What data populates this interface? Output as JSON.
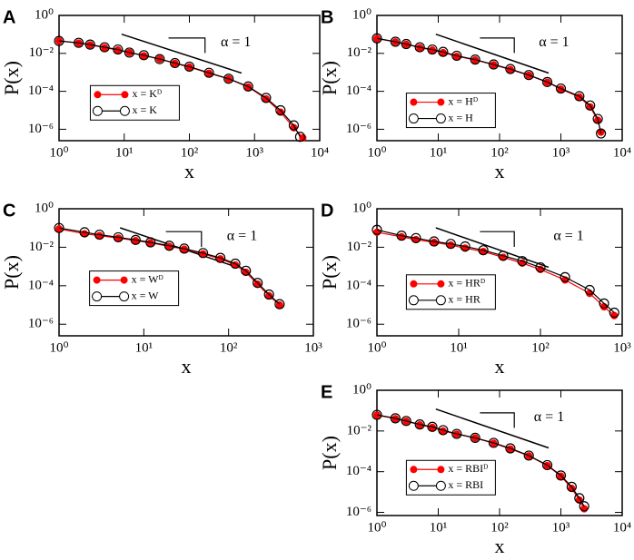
{
  "chart_data": [
    {
      "type": "line",
      "label": "A",
      "xlabel": "x",
      "ylabel": "P(x)",
      "annotation": "α = 1",
      "xlog": true,
      "ylog": true,
      "xlim": [
        1,
        10000
      ],
      "ylim": [
        2.5e-07,
        1
      ],
      "xticks": [
        {
          "value": 1,
          "label": "10⁰"
        },
        {
          "value": 10,
          "label": "10¹"
        },
        {
          "value": 100,
          "label": "10²"
        },
        {
          "value": 1000,
          "label": "10³"
        },
        {
          "value": 10000,
          "label": "10⁴"
        }
      ],
      "yticks": [
        {
          "value": 1,
          "label": "10⁰"
        },
        {
          "value": 0.01,
          "label": "10⁻²"
        },
        {
          "value": 0.0001,
          "label": "10⁻⁴"
        },
        {
          "value": 1e-06,
          "label": "10⁻⁶"
        }
      ],
      "series": [
        {
          "name": "x = Kᴰ",
          "color": "#ff0000",
          "marker": "filled",
          "x": [
            1,
            2,
            3,
            5,
            8,
            12,
            20,
            35,
            60,
            100,
            200,
            400,
            800,
            1500,
            2500,
            4000,
            5500
          ],
          "values": [
            0.045,
            0.035,
            0.028,
            0.02,
            0.015,
            0.011,
            0.0075,
            0.005,
            0.003,
            0.0019,
            0.0009,
            0.00045,
            0.00017,
            4e-05,
            8e-06,
            1.2e-06,
            3.5e-07
          ]
        },
        {
          "name": "x = K",
          "color": "#000000",
          "marker": "open",
          "x": [
            1,
            2,
            3,
            5,
            8,
            12,
            20,
            35,
            60,
            100,
            200,
            400,
            800,
            1500,
            2500,
            4000,
            5000
          ],
          "values": [
            0.045,
            0.036,
            0.029,
            0.021,
            0.016,
            0.011,
            0.008,
            0.005,
            0.0031,
            0.002,
            0.00095,
            0.00046,
            0.00018,
            4.5e-05,
            1e-05,
            1.6e-06,
            4e-07
          ]
        }
      ]
    },
    {
      "type": "line",
      "label": "B",
      "xlabel": "x",
      "ylabel": "P(x)",
      "annotation": "α = 1",
      "xlog": true,
      "ylog": true,
      "xlim": [
        1,
        10000
      ],
      "ylim": [
        2.5e-07,
        1
      ],
      "xticks": [
        {
          "value": 1,
          "label": "10⁰"
        },
        {
          "value": 10,
          "label": "10¹"
        },
        {
          "value": 100,
          "label": "10²"
        },
        {
          "value": 1000,
          "label": "10³"
        },
        {
          "value": 10000,
          "label": "10⁴"
        }
      ],
      "yticks": [
        {
          "value": 1,
          "label": "10⁰"
        },
        {
          "value": 0.01,
          "label": "10⁻²"
        },
        {
          "value": 0.0001,
          "label": "10⁻⁴"
        },
        {
          "value": 1e-06,
          "label": "10⁻⁶"
        }
      ],
      "series": [
        {
          "name": "x = Hᴰ",
          "color": "#ff0000",
          "marker": "filled",
          "x": [
            1,
            2,
            3,
            5,
            8,
            12,
            20,
            40,
            80,
            150,
            300,
            600,
            1000,
            2000,
            3000,
            4000,
            4500
          ],
          "values": [
            0.06,
            0.04,
            0.03,
            0.02,
            0.015,
            0.011,
            0.007,
            0.0045,
            0.0025,
            0.0014,
            0.0007,
            0.0003,
            0.00013,
            5e-05,
            1.5e-05,
            3e-06,
            7e-07
          ]
        },
        {
          "name": "x = H",
          "color": "#000000",
          "marker": "open",
          "x": [
            1,
            2,
            3,
            5,
            8,
            12,
            20,
            40,
            80,
            150,
            300,
            600,
            1000,
            2000,
            3000,
            4000,
            4500
          ],
          "values": [
            0.062,
            0.041,
            0.031,
            0.021,
            0.016,
            0.012,
            0.0075,
            0.0047,
            0.0026,
            0.0015,
            0.00072,
            0.00031,
            0.00014,
            5.5e-05,
            1.8e-05,
            3.5e-06,
            6e-07
          ]
        }
      ]
    },
    {
      "type": "line",
      "label": "C",
      "xlabel": "x",
      "ylabel": "P(x)",
      "annotation": "α = 1",
      "xlog": true,
      "ylog": true,
      "xlim": [
        1,
        1000
      ],
      "ylim": [
        2.5e-07,
        1
      ],
      "xticks": [
        {
          "value": 1,
          "label": "10⁰"
        },
        {
          "value": 10,
          "label": "10¹"
        },
        {
          "value": 100,
          "label": "10²"
        },
        {
          "value": 1000,
          "label": "10³"
        }
      ],
      "yticks": [
        {
          "value": 1,
          "label": "10⁰"
        },
        {
          "value": 0.01,
          "label": "10⁻²"
        },
        {
          "value": 0.0001,
          "label": "10⁻⁴"
        },
        {
          "value": 1e-06,
          "label": "10⁻⁶"
        }
      ],
      "series": [
        {
          "name": "x = Wᴰ",
          "color": "#ff0000",
          "marker": "filled",
          "x": [
            1,
            2,
            3,
            5,
            8,
            12,
            20,
            30,
            50,
            80,
            120,
            160,
            220,
            300,
            400
          ],
          "values": [
            0.09,
            0.05,
            0.04,
            0.03,
            0.022,
            0.017,
            0.011,
            0.008,
            0.0045,
            0.0025,
            0.0012,
            0.0005,
            0.00012,
            3e-05,
            1e-05
          ]
        },
        {
          "name": "x = W",
          "color": "#000000",
          "marker": "open",
          "x": [
            1,
            2,
            3,
            5,
            8,
            12,
            20,
            30,
            50,
            80,
            120,
            160,
            220,
            300,
            400
          ],
          "values": [
            0.1,
            0.06,
            0.045,
            0.033,
            0.024,
            0.018,
            0.012,
            0.0085,
            0.005,
            0.0028,
            0.0014,
            0.0006,
            0.00014,
            3.5e-05,
            1.1e-05
          ]
        }
      ]
    },
    {
      "type": "line",
      "label": "D",
      "xlabel": "x",
      "ylabel": "P(x)",
      "annotation": "α = 1",
      "xlog": true,
      "ylog": true,
      "xlim": [
        1,
        1000
      ],
      "ylim": [
        2.5e-07,
        1
      ],
      "xticks": [
        {
          "value": 1,
          "label": "10⁰"
        },
        {
          "value": 10,
          "label": "10¹"
        },
        {
          "value": 100,
          "label": "10²"
        },
        {
          "value": 1000,
          "label": "10³"
        }
      ],
      "yticks": [
        {
          "value": 1,
          "label": "10⁰"
        },
        {
          "value": 0.01,
          "label": "10⁻²"
        },
        {
          "value": 0.0001,
          "label": "10⁻⁴"
        },
        {
          "value": 1e-06,
          "label": "10⁻⁶"
        }
      ],
      "series": [
        {
          "name": "x = HRᴰ",
          "color": "#ff0000",
          "marker": "filled",
          "x": [
            1,
            2,
            3,
            5,
            8,
            12,
            20,
            35,
            60,
            100,
            200,
            400,
            600,
            800
          ],
          "values": [
            0.06,
            0.035,
            0.025,
            0.018,
            0.013,
            0.009,
            0.006,
            0.003,
            0.0015,
            0.0007,
            0.0002,
            4e-05,
            8e-06,
            2.8e-06
          ]
        },
        {
          "name": "x = HR",
          "color": "#000000",
          "marker": "open",
          "x": [
            1,
            2,
            3,
            5,
            8,
            12,
            20,
            35,
            60,
            100,
            200,
            400,
            600,
            800
          ],
          "values": [
            0.08,
            0.04,
            0.03,
            0.02,
            0.015,
            0.011,
            0.007,
            0.0036,
            0.0019,
            0.0009,
            0.00028,
            6e-05,
            1.2e-05,
            4e-06
          ]
        }
      ]
    },
    {
      "type": "line",
      "label": "E",
      "xlabel": "x",
      "ylabel": "P(x)",
      "annotation": "α = 1",
      "xlog": true,
      "ylog": true,
      "xlim": [
        1,
        10000
      ],
      "ylim": [
        7e-07,
        1
      ],
      "xticks": [
        {
          "value": 1,
          "label": "10⁰"
        },
        {
          "value": 10,
          "label": "10¹"
        },
        {
          "value": 100,
          "label": "10²"
        },
        {
          "value": 1000,
          "label": "10³"
        },
        {
          "value": 10000,
          "label": "10⁴"
        }
      ],
      "yticks": [
        {
          "value": 1,
          "label": "10⁰"
        },
        {
          "value": 0.01,
          "label": "10⁻²"
        },
        {
          "value": 0.0001,
          "label": "10⁻⁴"
        },
        {
          "value": 1e-06,
          "label": "10⁻⁶"
        }
      ],
      "series": [
        {
          "name": "x = RBIᴰ",
          "color": "#ff0000",
          "marker": "filled",
          "x": [
            1,
            2,
            3,
            5,
            8,
            12,
            20,
            40,
            80,
            150,
            300,
            600,
            1000,
            1500,
            2000,
            2400
          ],
          "values": [
            0.06,
            0.04,
            0.03,
            0.02,
            0.015,
            0.01,
            0.007,
            0.0045,
            0.0025,
            0.0013,
            0.0006,
            0.0002,
            6e-05,
            1.5e-05,
            4e-06,
            1.5e-06
          ]
        },
        {
          "name": "x = RBI",
          "color": "#000000",
          "marker": "open",
          "x": [
            1,
            2,
            3,
            5,
            8,
            12,
            20,
            40,
            80,
            150,
            300,
            600,
            1000,
            1500,
            2000,
            2400
          ],
          "values": [
            0.062,
            0.042,
            0.031,
            0.021,
            0.016,
            0.011,
            0.0072,
            0.0046,
            0.0026,
            0.0014,
            0.00062,
            0.00021,
            6.5e-05,
            1.8e-05,
            5e-06,
            2e-06
          ]
        }
      ]
    }
  ]
}
